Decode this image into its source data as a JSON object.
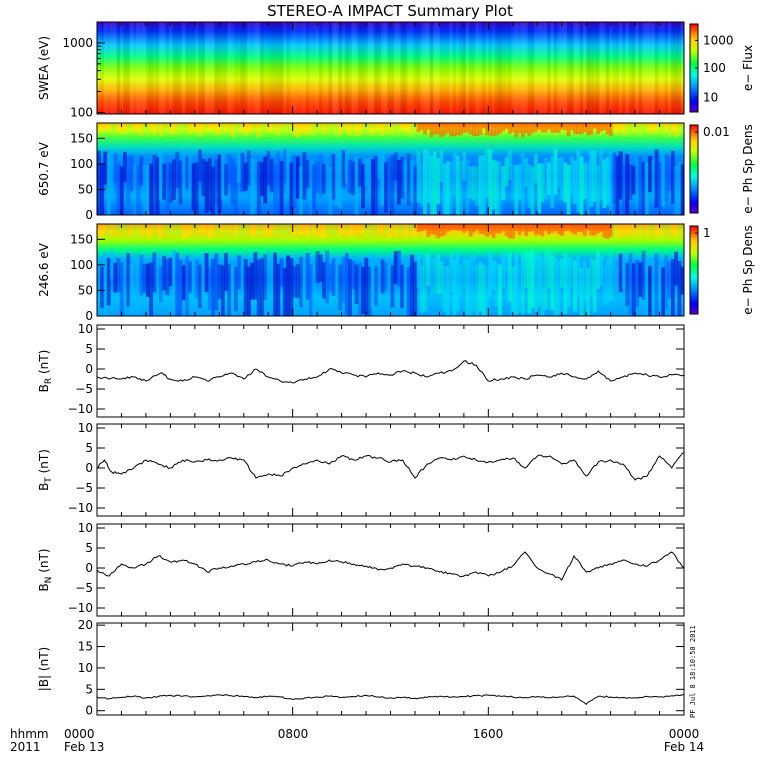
{
  "chart_data": {
    "title": "STEREO-A IMPACT Summary Plot",
    "x_axis": {
      "row_labels": [
        "hhmm",
        "2011"
      ],
      "ticks": [
        "0000",
        "0800",
        "1600",
        "0000"
      ],
      "dates": [
        "Feb 13",
        "",
        "",
        "Feb 14"
      ],
      "range_hours": [
        0,
        24
      ]
    },
    "stamp": "PF Jul 8 18:10:50 2011",
    "panels": [
      {
        "id": "swea",
        "type": "heatmap",
        "ylabel": "SWEA (eV)",
        "ylog": true,
        "ylim": [
          95,
          2000
        ],
        "yticks": [
          "1000",
          "100"
        ],
        "colorbar": {
          "label": "e− Flux",
          "log": true,
          "ticks": [
            "1000",
            "100",
            "10"
          ]
        }
      },
      {
        "id": "pad650",
        "type": "heatmap",
        "ylabel": "650.7 eV",
        "ylim": [
          0,
          180
        ],
        "yticks": [
          "150",
          "100",
          "50",
          "0"
        ],
        "colorbar": {
          "label": "e− Ph Sp Dens",
          "ticks": [
            "0.01"
          ]
        }
      },
      {
        "id": "pad246",
        "type": "heatmap",
        "ylabel": "246.6 eV",
        "ylim": [
          0,
          180
        ],
        "yticks": [
          "150",
          "100",
          "50",
          "0"
        ],
        "colorbar": {
          "label": "e− Ph Sp Dens",
          "ticks": [
            "1"
          ]
        }
      },
      {
        "id": "br",
        "type": "line",
        "ylabel_main": "B",
        "ylabel_sub": "R",
        "ylabel_unit": "(nT)",
        "ylim": [
          -12,
          11
        ],
        "yticks": [
          "10",
          "5",
          "0",
          "−5",
          "−10"
        ],
        "x": [
          0,
          1,
          1.5,
          2,
          2.6,
          3,
          3.5,
          4,
          4.5,
          5,
          5.5,
          6,
          6.5,
          7,
          7.5,
          8,
          8.5,
          9,
          9.5,
          10,
          10.5,
          11,
          11.5,
          12,
          12.5,
          13,
          13.5,
          14,
          14.5,
          15,
          15.5,
          16,
          16.5,
          17,
          17.5,
          18,
          18.5,
          19,
          19.5,
          20,
          20.5,
          21,
          21.5,
          22,
          22.5,
          23,
          23.5,
          24
        ],
        "values": [
          -2,
          -2.5,
          -2,
          -3,
          -1,
          -2.5,
          -3,
          -2,
          -3,
          -2,
          -1,
          -2.5,
          0,
          -2,
          -3,
          -3.5,
          -2.5,
          -2,
          0,
          -1,
          -1.5,
          -2,
          -1,
          -1.5,
          -0.5,
          -1,
          -2,
          -1,
          -0.5,
          2,
          1,
          -3,
          -2.5,
          -2,
          -2.5,
          -1.5,
          -2,
          -1,
          -2,
          -2.5,
          -0.5,
          -3,
          -2,
          -1,
          -1.5,
          -2,
          -1.5,
          -1.5
        ]
      },
      {
        "id": "bt",
        "type": "line",
        "ylabel_main": "B",
        "ylabel_sub": "T",
        "ylabel_unit": "(nT)",
        "ylim": [
          -12,
          11
        ],
        "yticks": [
          "10",
          "5",
          "0",
          "−5",
          "−10"
        ],
        "x": [
          0,
          0.3,
          0.6,
          1,
          1.5,
          2,
          2.5,
          3,
          3.5,
          4,
          4.5,
          5,
          5.5,
          6,
          6.5,
          7,
          7.5,
          8,
          8.5,
          9,
          9.5,
          10,
          10.5,
          11,
          11.5,
          12,
          12.5,
          13,
          13.5,
          14,
          14.5,
          15,
          15.5,
          16,
          16.5,
          17,
          17.5,
          18,
          18.5,
          19,
          19.5,
          20,
          20.5,
          21,
          21.5,
          22,
          22.5,
          23,
          23.5,
          24
        ],
        "values": [
          0,
          2,
          -1,
          -1.5,
          0,
          2,
          1,
          0,
          2,
          1.5,
          2,
          2,
          2.5,
          2,
          -2.5,
          -1.5,
          -2,
          0,
          1,
          2,
          1,
          3,
          2,
          3,
          2.5,
          1.5,
          2,
          -2.5,
          1,
          2.5,
          2,
          3,
          2,
          1.5,
          2,
          2.5,
          0,
          3,
          3,
          1,
          2,
          -2,
          1.5,
          2,
          1,
          -3,
          -2,
          3,
          0,
          4
        ]
      },
      {
        "id": "bn",
        "type": "line",
        "ylabel_main": "B",
        "ylabel_sub": "N",
        "ylabel_unit": "(nT)",
        "ylim": [
          -12,
          11
        ],
        "yticks": [
          "10",
          "5",
          "0",
          "−5",
          "−10"
        ],
        "x": [
          0,
          0.5,
          1,
          1.5,
          2,
          2.5,
          3,
          3.5,
          4,
          4.5,
          5,
          5.5,
          6,
          6.5,
          7,
          7.5,
          8,
          8.5,
          9,
          9.5,
          10,
          10.5,
          11,
          11.5,
          12,
          12.5,
          13,
          13.5,
          14,
          14.5,
          15,
          15.5,
          16,
          16.5,
          17,
          17.5,
          18,
          18.5,
          19,
          19.5,
          20,
          20.5,
          21,
          21.5,
          22,
          22.5,
          23,
          23.5,
          24
        ],
        "values": [
          -0.5,
          -2,
          1,
          0,
          1,
          3,
          1.5,
          2,
          1,
          -1,
          0,
          0.5,
          1,
          1.5,
          2,
          1,
          0.5,
          1.5,
          1,
          2,
          1.5,
          1,
          0.5,
          -0.5,
          0,
          1,
          0.5,
          0,
          -1,
          -1.5,
          -2,
          -1,
          -2,
          -1,
          0.5,
          4,
          0,
          -1.5,
          -3,
          3,
          -1,
          0,
          1,
          2,
          1,
          0.5,
          2,
          4,
          0
        ]
      },
      {
        "id": "bmag",
        "type": "line",
        "ylabel": "|B| (nT)",
        "ylim": [
          -1,
          20.5
        ],
        "yticks": [
          "20",
          "15",
          "10",
          "5",
          "0"
        ],
        "x": [
          0,
          0.5,
          1,
          1.5,
          2,
          2.5,
          3,
          3.5,
          4,
          4.5,
          5,
          5.5,
          6,
          6.5,
          7,
          7.5,
          8,
          8.5,
          9,
          9.5,
          10,
          10.5,
          11,
          11.5,
          12,
          12.5,
          13,
          13.5,
          14,
          14.5,
          15,
          15.5,
          16,
          16.5,
          17,
          17.5,
          18,
          18.5,
          19,
          19.5,
          20,
          20.5,
          21,
          21.5,
          22,
          22.5,
          23,
          23.5,
          24
        ],
        "values": [
          3.2,
          2.8,
          3.1,
          3.4,
          3.0,
          3.3,
          3.6,
          3.4,
          3.2,
          3.5,
          3.7,
          3.5,
          3.3,
          3.1,
          3.4,
          3.2,
          2.6,
          3.0,
          3.2,
          3.4,
          3.1,
          3.3,
          3.6,
          3.2,
          3.0,
          3.1,
          2.9,
          3.1,
          3.4,
          3.2,
          3.3,
          3.5,
          3.6,
          3.4,
          3.2,
          3.1,
          3.3,
          3.0,
          3.2,
          3.4,
          1.5,
          3.4,
          3.2,
          3.1,
          3.0,
          3.3,
          3.2,
          3.5,
          3.7
        ]
      }
    ]
  }
}
